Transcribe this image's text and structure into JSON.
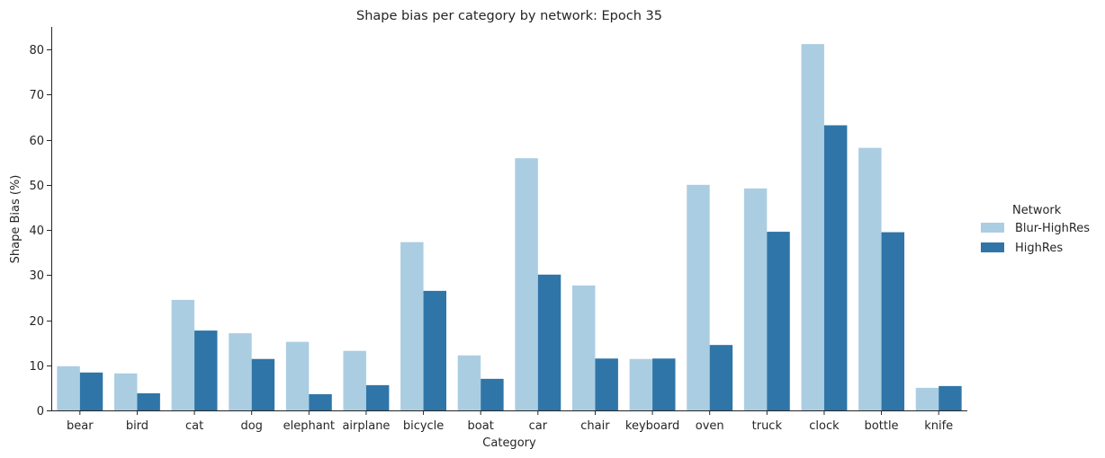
{
  "chart_data": {
    "type": "bar",
    "title": "Shape bias per category by network: Epoch 35",
    "xlabel": "Category",
    "ylabel": "Shape Bias (%)",
    "ylim": [
      0,
      85
    ],
    "yticks": [
      0,
      10,
      20,
      30,
      40,
      50,
      60,
      70,
      80
    ],
    "grid": false,
    "legend_position": "right",
    "legend_title": "Network",
    "categories": [
      "bear",
      "bird",
      "cat",
      "dog",
      "elephant",
      "airplane",
      "bicycle",
      "boat",
      "car",
      "chair",
      "keyboard",
      "oven",
      "truck",
      "clock",
      "bottle",
      "knife"
    ],
    "series": [
      {
        "name": "Blur-HighRes",
        "color": "#abcde2",
        "values": [
          9.8,
          8.2,
          24.5,
          17.1,
          15.2,
          13.2,
          37.3,
          12.2,
          55.9,
          27.7,
          11.4,
          50.0,
          49.2,
          81.2,
          58.2,
          5.0
        ]
      },
      {
        "name": "HighRes",
        "color": "#2f75a8",
        "values": [
          8.4,
          3.8,
          17.7,
          11.4,
          3.6,
          5.6,
          26.5,
          7.0,
          30.1,
          11.5,
          11.5,
          14.5,
          39.6,
          63.2,
          39.5,
          5.4
        ]
      }
    ]
  }
}
